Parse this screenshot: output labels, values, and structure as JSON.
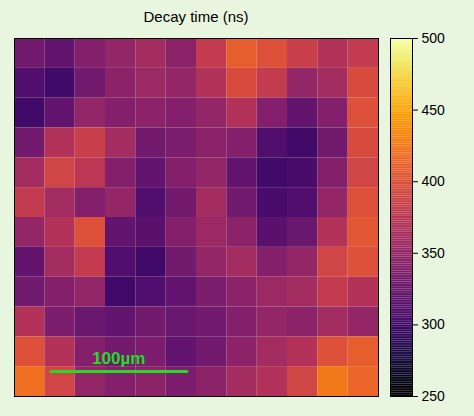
{
  "chart_data": {
    "type": "heatmap",
    "title": "Decay time (ns)",
    "cells": [
      [
        330,
        320,
        340,
        350,
        360,
        345,
        380,
        410,
        400,
        385,
        370,
        380
      ],
      [
        310,
        300,
        330,
        345,
        355,
        350,
        370,
        395,
        380,
        350,
        360,
        395
      ],
      [
        300,
        320,
        350,
        340,
        345,
        340,
        350,
        370,
        340,
        320,
        340,
        400
      ],
      [
        330,
        370,
        385,
        360,
        330,
        335,
        345,
        340,
        310,
        300,
        330,
        395
      ],
      [
        360,
        390,
        375,
        340,
        320,
        340,
        350,
        320,
        300,
        305,
        340,
        390
      ],
      [
        380,
        360,
        340,
        350,
        310,
        330,
        360,
        330,
        305,
        310,
        350,
        400
      ],
      [
        350,
        370,
        400,
        320,
        315,
        340,
        355,
        345,
        315,
        325,
        370,
        405
      ],
      [
        320,
        360,
        380,
        310,
        300,
        330,
        350,
        360,
        340,
        350,
        390,
        400
      ],
      [
        330,
        340,
        350,
        300,
        310,
        320,
        335,
        345,
        355,
        360,
        380,
        370
      ],
      [
        370,
        335,
        325,
        320,
        330,
        325,
        330,
        340,
        350,
        345,
        360,
        350
      ],
      [
        400,
        370,
        340,
        330,
        335,
        320,
        330,
        345,
        360,
        370,
        400,
        410
      ],
      [
        420,
        390,
        350,
        340,
        345,
        335,
        345,
        360,
        370,
        390,
        425,
        415
      ]
    ],
    "xlim": [
      0,
      268
    ],
    "ylim": [
      0,
      263
    ],
    "tick_labels": false,
    "color": "inferno",
    "colorbar_range": [
      250,
      500
    ],
    "colorbar_ticks": [
      250,
      300,
      350,
      400,
      450,
      500
    ],
    "annotations": [
      {
        "text": "100µm",
        "length": 100,
        "color": "#22dd22"
      }
    ]
  }
}
